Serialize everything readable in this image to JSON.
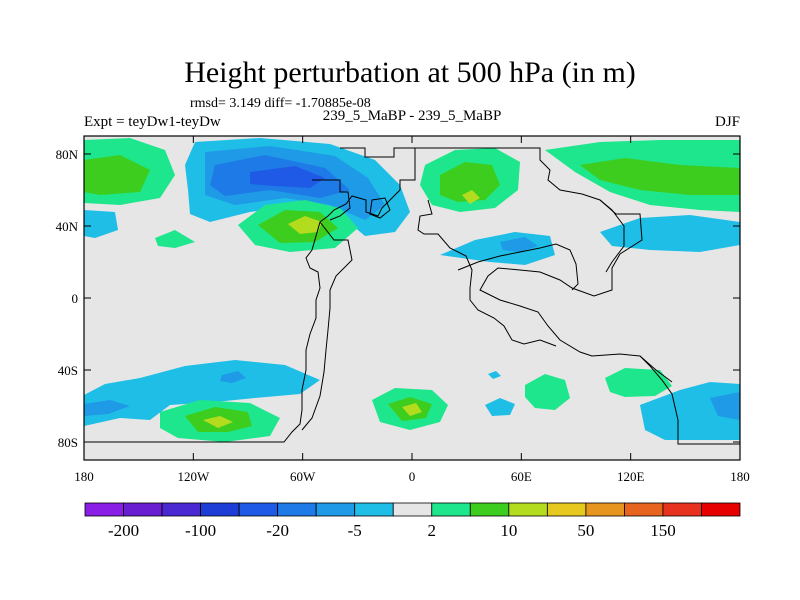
{
  "chart_data": {
    "type": "heatmap",
    "title": "Height perturbation at 500 hPa (in m)",
    "stats_text": "rmsd= 3.149  diff= -1.70885e-08",
    "left_label": "Expt = teyDw1-teyDw",
    "center_label": "239_5_MaBP - 239_5_MaBP",
    "right_label": "DJF",
    "x_ticks": [
      {
        "lon": -180,
        "label": "180"
      },
      {
        "lon": -120,
        "label": "120W"
      },
      {
        "lon": -60,
        "label": "60W"
      },
      {
        "lon": 0,
        "label": "0"
      },
      {
        "lon": 60,
        "label": "60E"
      },
      {
        "lon": 120,
        "label": "120E"
      },
      {
        "lon": 180,
        "label": "180"
      }
    ],
    "y_ticks": [
      {
        "lat": 80,
        "label": "80N"
      },
      {
        "lat": 40,
        "label": "40N"
      },
      {
        "lat": 0,
        "label": "0"
      },
      {
        "lat": -40,
        "label": "40S"
      },
      {
        "lat": -80,
        "label": "80S"
      }
    ],
    "xlim": [
      -180,
      180
    ],
    "ylim": [
      -90,
      90
    ],
    "background_color": "#e6e6e6",
    "colorbar": {
      "colors": [
        "#8a1ee6",
        "#6a1ed2",
        "#4a28d2",
        "#1e3cd6",
        "#1e5ae6",
        "#1e7ae6",
        "#1e9ae6",
        "#1ebee6",
        "#e6e6e6",
        "#1ee68c",
        "#3ccd1e",
        "#b4dc1e",
        "#e6c81e",
        "#e6961e",
        "#e6641e",
        "#e6321e",
        "#e60000"
      ],
      "labels": [
        "-200",
        "-100",
        "-20",
        "-5",
        "2",
        "10",
        "50",
        "150"
      ]
    },
    "regions": [
      {
        "name": "north-atlantic-high",
        "lon": -55,
        "lat": 37,
        "value": 40,
        "band": "yellow"
      },
      {
        "name": "north-pacific-low",
        "lon": -90,
        "lat": 62,
        "value": -40,
        "band": "blue"
      },
      {
        "name": "eurasia-high",
        "lon": 32,
        "lat": 55,
        "value": 20,
        "band": "yellow"
      },
      {
        "name": "south-pacific-low",
        "lon": -103,
        "lat": -45,
        "value": -8,
        "band": "blue"
      },
      {
        "name": "south-pacific-high",
        "lon": -115,
        "lat": -70,
        "value": 10,
        "band": "yellowgreen"
      },
      {
        "name": "south-atlantic-high",
        "lon": -5,
        "lat": -64,
        "value": 8,
        "band": "yellowgreen"
      }
    ]
  }
}
